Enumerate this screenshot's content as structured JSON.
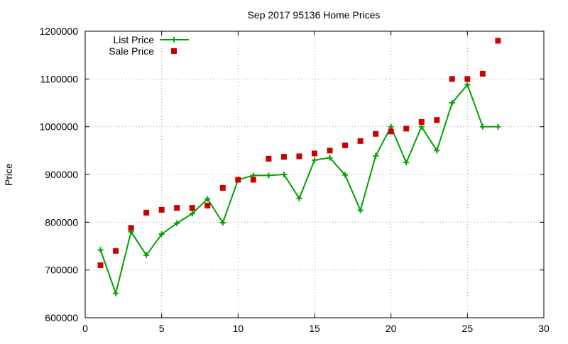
{
  "chart_data": {
    "type": "line",
    "title": "Sep 2017 95136 Home Prices",
    "xlabel": "",
    "ylabel": "Price",
    "xlim": [
      0,
      30
    ],
    "ylim": [
      600000,
      1200000
    ],
    "xticks": [
      0,
      5,
      10,
      15,
      20,
      25,
      30
    ],
    "yticks": [
      600000,
      700000,
      800000,
      900000,
      1000000,
      1100000,
      1200000
    ],
    "grid": true,
    "legend_position": "top-left",
    "series": [
      {
        "name": "List Price",
        "style": "line-plus",
        "color": "#00a000",
        "x": [
          1,
          2,
          3,
          4,
          5,
          6,
          7,
          8,
          9,
          10,
          11,
          12,
          13,
          14,
          15,
          16,
          17,
          18,
          19,
          20,
          21,
          22,
          23,
          24,
          25,
          26,
          27
        ],
        "y": [
          742000,
          651000,
          780000,
          731000,
          775000,
          798000,
          818000,
          849000,
          799000,
          889000,
          898000,
          898000,
          900000,
          850000,
          930000,
          935000,
          899000,
          825000,
          939000,
          1000000,
          925000,
          1000000,
          950000,
          1050000,
          1088000,
          1000000,
          1000000
        ]
      },
      {
        "name": "Sale Price",
        "style": "square",
        "color": "#cc0000",
        "x": [
          1,
          2,
          3,
          4,
          5,
          6,
          7,
          8,
          9,
          10,
          11,
          12,
          13,
          14,
          15,
          16,
          17,
          18,
          19,
          20,
          21,
          22,
          23,
          24,
          25,
          26,
          27
        ],
        "y": [
          710000,
          740000,
          788000,
          820000,
          826000,
          830000,
          830000,
          835000,
          872000,
          889000,
          889000,
          933000,
          937000,
          938000,
          944000,
          950000,
          961000,
          970000,
          985000,
          990000,
          996000,
          1010000,
          1014000,
          1100000,
          1100000,
          1111000,
          1180000
        ]
      }
    ]
  }
}
